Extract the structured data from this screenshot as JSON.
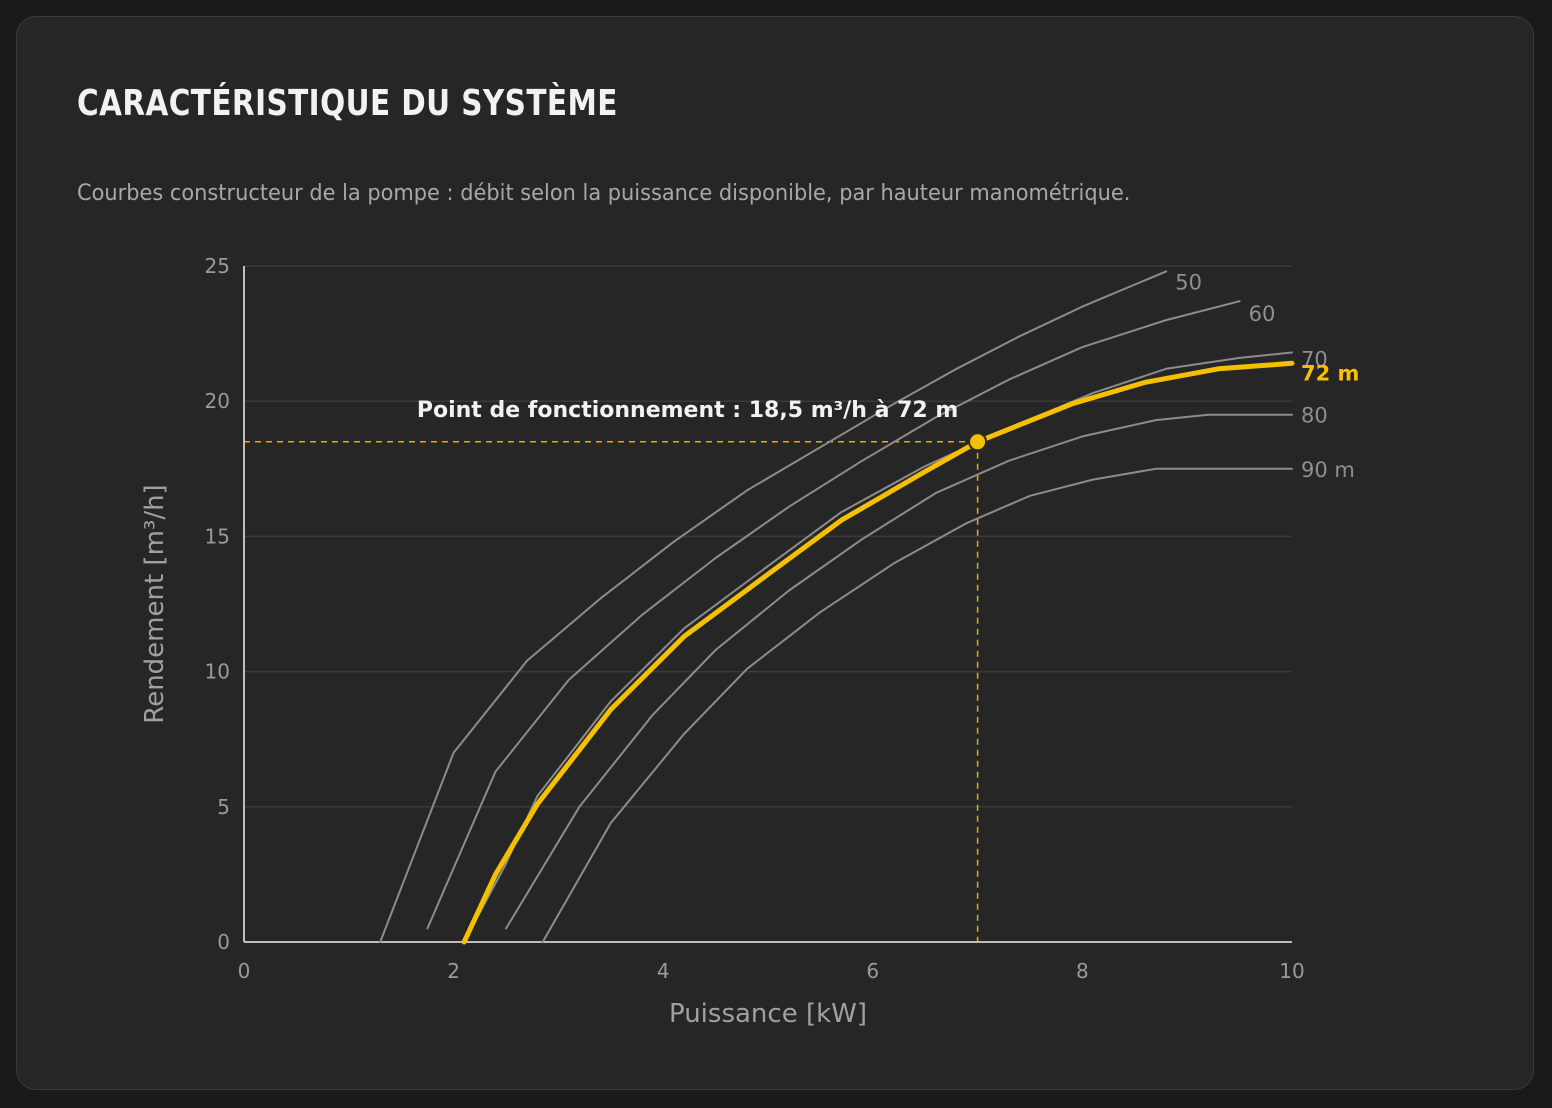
{
  "header": {
    "title": "CARACTÉRISTIQUE DU SYSTÈME",
    "subtitle": "Courbes constructeur de la pompe : débit selon la puissance disponible, par hauteur manométrique."
  },
  "colors": {
    "background": "#1a1a1a",
    "card": "#262626",
    "grid": "#3a3a3a",
    "curve": "#8c8c8c",
    "highlight": "#f5c000"
  },
  "chart_data": {
    "type": "line",
    "title": "",
    "xlabel": "Puissance [kW]",
    "ylabel": "Rendement [m³/h]",
    "xlim": [
      0,
      10
    ],
    "ylim": [
      0,
      25
    ],
    "xticks": [
      0,
      2,
      4,
      6,
      8,
      10
    ],
    "yticks": [
      0,
      5,
      10,
      15,
      20,
      25
    ],
    "grid": true,
    "series": [
      {
        "name": "50",
        "highlight": false,
        "x": [
          1.3,
          2.0,
          2.7,
          3.4,
          4.1,
          4.8,
          5.5,
          6.2,
          6.8,
          7.4,
          8.0,
          8.8
        ],
        "y": [
          0,
          7.0,
          10.4,
          12.7,
          14.8,
          16.7,
          18.3,
          19.9,
          21.2,
          22.4,
          23.5,
          24.8
        ]
      },
      {
        "name": "60",
        "highlight": false,
        "x": [
          1.75,
          2.4,
          3.1,
          3.8,
          4.5,
          5.2,
          5.9,
          6.6,
          7.3,
          8.0,
          8.8,
          9.5
        ],
        "y": [
          0.5,
          6.3,
          9.7,
          12.1,
          14.2,
          16.1,
          17.8,
          19.4,
          20.8,
          22.0,
          23.0,
          23.7
        ]
      },
      {
        "name": "70",
        "highlight": false,
        "x": [
          2.1,
          2.5,
          2.8,
          3.5,
          4.2,
          5.0,
          5.7,
          6.5,
          7.3,
          8.1,
          8.8,
          9.5,
          10.0
        ],
        "y": [
          0,
          2.9,
          5.4,
          8.9,
          11.6,
          13.9,
          15.9,
          17.6,
          19.0,
          20.3,
          21.2,
          21.6,
          21.8
        ]
      },
      {
        "name": "72 m",
        "highlight": true,
        "x": [
          2.1,
          2.4,
          2.8,
          3.5,
          4.2,
          5.0,
          5.7,
          6.5,
          7.0,
          7.9,
          8.6,
          9.3,
          10.0
        ],
        "y": [
          0,
          2.5,
          5.1,
          8.6,
          11.3,
          13.6,
          15.6,
          17.4,
          18.5,
          19.9,
          20.7,
          21.2,
          21.4
        ]
      },
      {
        "name": "80",
        "highlight": false,
        "x": [
          2.5,
          3.2,
          3.9,
          4.5,
          5.2,
          5.9,
          6.6,
          7.3,
          8.0,
          8.7,
          9.2,
          10.0
        ],
        "y": [
          0.5,
          5.0,
          8.4,
          10.8,
          13.0,
          14.9,
          16.6,
          17.8,
          18.7,
          19.3,
          19.5,
          19.5
        ]
      },
      {
        "name": "90 m",
        "highlight": false,
        "x": [
          2.85,
          3.5,
          4.2,
          4.8,
          5.5,
          6.2,
          6.9,
          7.5,
          8.1,
          8.7,
          10.0
        ],
        "y": [
          0,
          4.4,
          7.7,
          10.1,
          12.2,
          14.0,
          15.5,
          16.5,
          17.1,
          17.5,
          17.5
        ]
      }
    ],
    "operating_point": {
      "x": 7.0,
      "y": 18.5,
      "label": "Point de fonctionnement : 18,5 m³/h à 72 m"
    }
  }
}
